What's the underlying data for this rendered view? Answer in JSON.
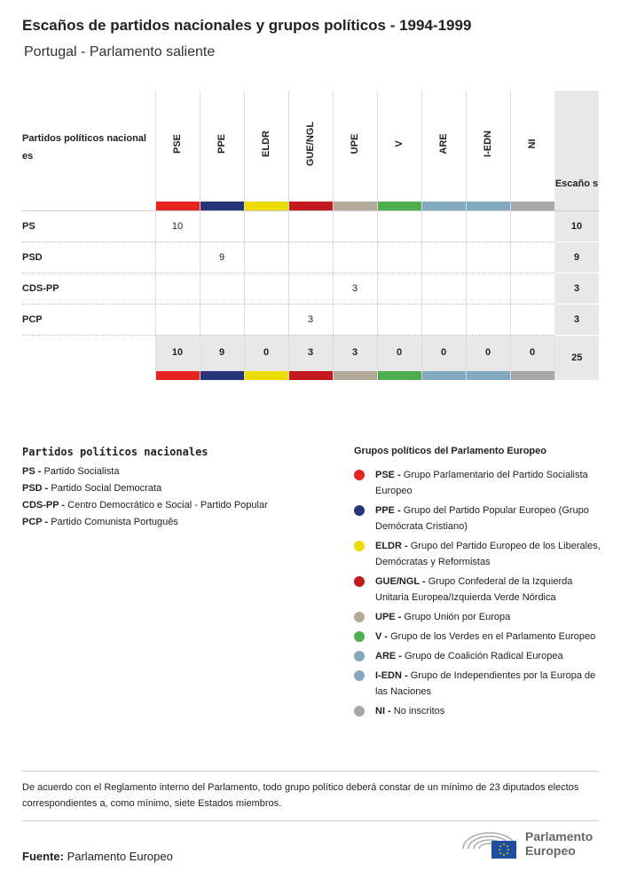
{
  "title": "Escaños de partidos nacionales y grupos políticos - 1994-1999",
  "subtitle": "Portugal - Parlamento saliente",
  "table": {
    "corner": "Partidos políticos nacional es",
    "total_header": "Escaño s",
    "groups": [
      {
        "code": "PSE",
        "color": "#e52421"
      },
      {
        "code": "PPE",
        "color": "#263579"
      },
      {
        "code": "ELDR",
        "color": "#ecdd00"
      },
      {
        "code": "GUE/NGL",
        "color": "#c21a1f"
      },
      {
        "code": "UPE",
        "color": "#b3aa9c"
      },
      {
        "code": "V",
        "color": "#4fad52"
      },
      {
        "code": "ARE",
        "color": "#83a9bf"
      },
      {
        "code": "I-EDN",
        "color": "#83a9bf"
      },
      {
        "code": "NI",
        "color": "#a8a8a8"
      }
    ],
    "rows": [
      {
        "party": "PS",
        "values": [
          "10",
          "",
          "",
          "",
          "",
          "",
          "",
          "",
          ""
        ],
        "total": "10"
      },
      {
        "party": "PSD",
        "values": [
          "",
          "9",
          "",
          "",
          "",
          "",
          "",
          "",
          ""
        ],
        "total": "9"
      },
      {
        "party": "CDS-PP",
        "values": [
          "",
          "",
          "",
          "",
          "3",
          "",
          "",
          "",
          ""
        ],
        "total": "3"
      },
      {
        "party": "PCP",
        "values": [
          "",
          "",
          "",
          "3",
          "",
          "",
          "",
          "",
          ""
        ],
        "total": "3"
      }
    ],
    "totals": [
      "10",
      "9",
      "0",
      "3",
      "3",
      "0",
      "0",
      "0",
      "0"
    ],
    "grand_total": "25"
  },
  "national_legend": {
    "title": "Partidos políticos nacionales",
    "items": [
      {
        "code": "PS -",
        "name": "Partido Socialista"
      },
      {
        "code": "PSD -",
        "name": "Partido Social Democrata"
      },
      {
        "code": "CDS-PP -",
        "name": "Centro Democrático e Social - Partido Popular"
      },
      {
        "code": "PCP -",
        "name": "Partido Comunista Português"
      }
    ]
  },
  "group_legend": {
    "title": "Grupos políticos del Parlamento Europeo",
    "items": [
      {
        "code": "PSE -",
        "name": "Grupo Parlamentario del Partido Socialista Europeo",
        "color": "#e52421"
      },
      {
        "code": "PPE -",
        "name": "Grupo del Partido Popular Europeo (Grupo Demócrata Cristiano)",
        "color": "#263579"
      },
      {
        "code": "ELDR -",
        "name": "Grupo del Partido Europeo de los Liberales, Demócratas y Reformistas",
        "color": "#ecdd00"
      },
      {
        "code": "GUE/NGL -",
        "name": "Grupo Confederal de la Izquierda Unitaria Europea/Izquierda Verde Nórdica",
        "color": "#c21a1f"
      },
      {
        "code": "UPE -",
        "name": "Grupo Unión por Europa",
        "color": "#b3aa9c"
      },
      {
        "code": "V -",
        "name": "Grupo de los Verdes en el Parlamento Europeo",
        "color": "#4fad52"
      },
      {
        "code": "ARE -",
        "name": "Grupo de Coalición Radical Europea",
        "color": "#83a9bf"
      },
      {
        "code": "I-EDN -",
        "name": "Grupo de Independientes por la Europa de las Naciones",
        "color": "#83a9bf"
      },
      {
        "code": "NI -",
        "name": "No inscritos",
        "color": "#a8a8a8"
      }
    ]
  },
  "note": "De acuerdo con el Reglamento interno del Parlamento, todo grupo político deberá constar de un mínimo de 23 diputados electos correspondientes a, como mínimo, siete Estados miembros.",
  "source": {
    "label": "Fuente:",
    "value": "Parlamento Europeo"
  },
  "logo": {
    "line1": "Parlamento",
    "line2": "Europeo"
  }
}
